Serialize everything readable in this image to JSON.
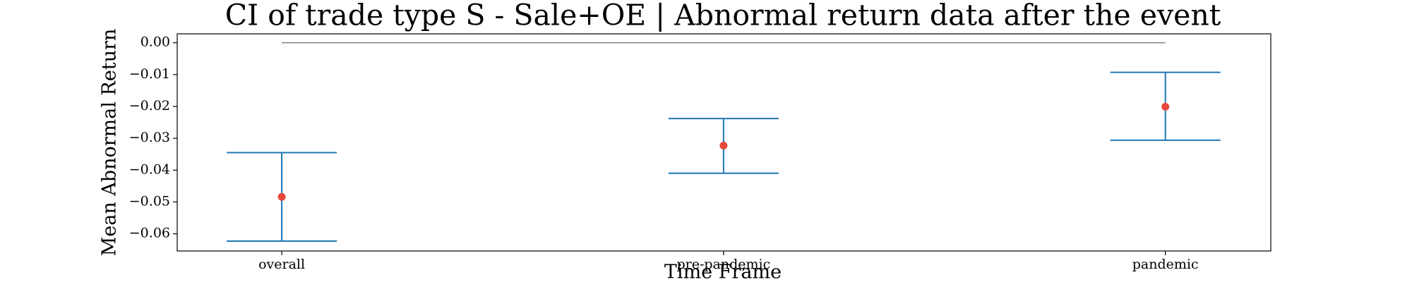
{
  "chart_data": {
    "type": "errorbar",
    "title": "CI of trade type  S - Sale+OE | Abnormal return data after the event",
    "x_label": "Time Frame",
    "y_label": "Mean Abnormal Return",
    "categories": [
      "overall",
      "pre-pandemic",
      "pandemic"
    ],
    "values": [
      -0.0484,
      -0.0323,
      -0.0201
    ],
    "lower": [
      -0.0623,
      -0.041,
      -0.0306
    ],
    "upper": [
      -0.0345,
      -0.0238,
      -0.0093
    ],
    "color": "#1f77b4",
    "point_color": "#e8473c",
    "reference_line": 0,
    "reference_color": "#808080",
    "ylim": [
      -0.0654,
      0.0028
    ],
    "yticks": [
      {
        "value": 0,
        "label": "0.00"
      },
      {
        "value": -0.01,
        "label": "−0.01"
      },
      {
        "value": -0.02,
        "label": "−0.02"
      },
      {
        "value": -0.03,
        "label": "−0.03"
      },
      {
        "value": -0.04,
        "label": "−0.04"
      },
      {
        "value": -0.05,
        "label": "−0.05"
      },
      {
        "value": -0.06,
        "label": "−0.06"
      }
    ]
  }
}
